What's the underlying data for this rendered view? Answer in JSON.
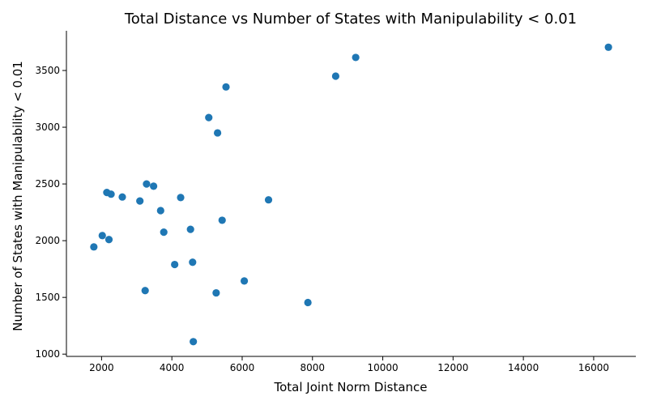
{
  "chart_data": {
    "type": "scatter",
    "title": "Total Distance vs Number of States with Manipulability < 0.01",
    "xlabel": "Total Joint Norm Distance",
    "ylabel": "Number of States with Manipulability < 0.01",
    "xlim": [
      1000,
      17200
    ],
    "ylim": [
      980,
      3850
    ],
    "xticks": [
      2000,
      4000,
      6000,
      8000,
      10000,
      12000,
      14000,
      16000
    ],
    "yticks": [
      1000,
      1500,
      2000,
      2500,
      3000,
      3500
    ],
    "grid": false,
    "legend": "none",
    "marker_color": "#1f77b4",
    "points": [
      {
        "x": 16420,
        "y": 3705
      },
      {
        "x": 9230,
        "y": 3615
      },
      {
        "x": 8660,
        "y": 3450
      },
      {
        "x": 5540,
        "y": 3355
      },
      {
        "x": 5050,
        "y": 3085
      },
      {
        "x": 5300,
        "y": 2950
      },
      {
        "x": 3280,
        "y": 2500
      },
      {
        "x": 3480,
        "y": 2480
      },
      {
        "x": 2150,
        "y": 2425
      },
      {
        "x": 2270,
        "y": 2410
      },
      {
        "x": 2590,
        "y": 2385
      },
      {
        "x": 4250,
        "y": 2380
      },
      {
        "x": 6750,
        "y": 2360
      },
      {
        "x": 3090,
        "y": 2350
      },
      {
        "x": 3680,
        "y": 2265
      },
      {
        "x": 5430,
        "y": 2180
      },
      {
        "x": 4530,
        "y": 2100
      },
      {
        "x": 3770,
        "y": 2075
      },
      {
        "x": 2020,
        "y": 2045
      },
      {
        "x": 2210,
        "y": 2010
      },
      {
        "x": 1780,
        "y": 1945
      },
      {
        "x": 4590,
        "y": 1810
      },
      {
        "x": 4080,
        "y": 1790
      },
      {
        "x": 6060,
        "y": 1645
      },
      {
        "x": 3240,
        "y": 1560
      },
      {
        "x": 5260,
        "y": 1540
      },
      {
        "x": 7870,
        "y": 1455
      },
      {
        "x": 4610,
        "y": 1110
      }
    ]
  }
}
